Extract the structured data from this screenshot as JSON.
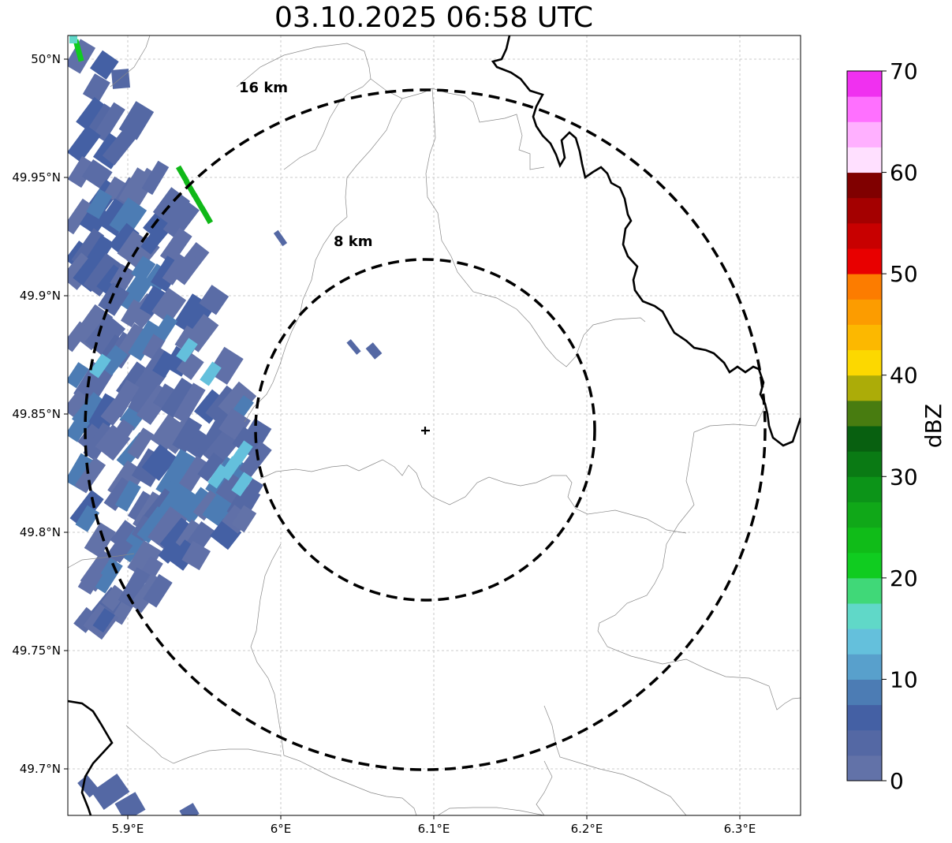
{
  "map": {
    "title": "03.10.2025 06:58 UTC",
    "x_ticks": [
      "5.9°E",
      "6°E",
      "6.1°E",
      "6.2°E",
      "6.3°E"
    ],
    "y_ticks": [
      "50°N",
      "49.95°N",
      "49.9°N",
      "49.85°N",
      "49.8°N",
      "49.75°N",
      "49.7°N"
    ],
    "rings": [
      {
        "label": "16 km",
        "radius_km": 16
      },
      {
        "label": "8 km",
        "radius_km": 8
      }
    ],
    "radar_site": {
      "lon": 6.095,
      "lat": 49.843
    },
    "gridlines": true,
    "border_color": "#000000",
    "boundary_color": "#888888"
  },
  "colorbar": {
    "label": "dBZ",
    "ticks": [
      "0",
      "10",
      "20",
      "30",
      "40",
      "50",
      "60",
      "70"
    ],
    "min": 0,
    "max": 70,
    "colors": [
      "#6272a8",
      "#5468a4",
      "#4460a4",
      "#4c7cb4",
      "#58a0cc",
      "#64c0dc",
      "#60d8c8",
      "#40d878",
      "#10cc20",
      "#10bc18",
      "#10a818",
      "#0c9418",
      "#0a7a14",
      "#086010",
      "#487c10",
      "#acac08",
      "#fcd800",
      "#fcb800",
      "#fc9c00",
      "#fc7c00",
      "#e80000",
      "#c80000",
      "#a40000",
      "#800000",
      "#ffe0ff",
      "#ffb0ff",
      "#ff70ff",
      "#f030f0"
    ]
  }
}
